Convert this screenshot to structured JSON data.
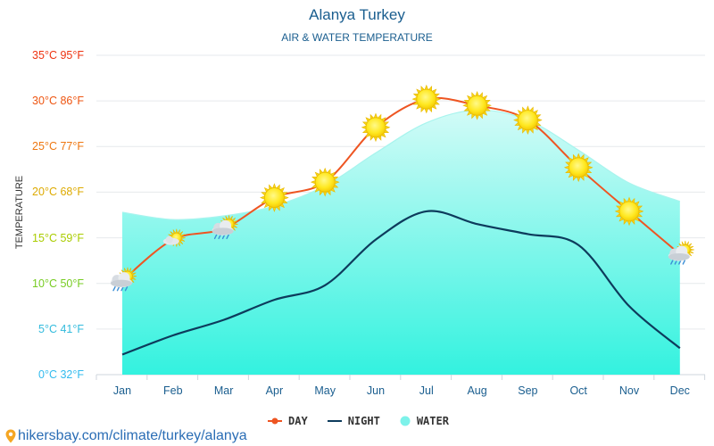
{
  "title": "Alanya Turkey",
  "subtitle": "AIR & WATER TEMPERATURE",
  "source": "hikersbay.com/climate/turkey/alanya",
  "chart_data": {
    "type": "line",
    "title": "Alanya Turkey",
    "subtitle": "AIR & WATER TEMPERATURE",
    "ylabel": "TEMPERATURE",
    "xlabel": "",
    "ylim": [
      0,
      35
    ],
    "grid": true,
    "legend_position": "bottom",
    "categories": [
      "Jan",
      "Feb",
      "Mar",
      "Apr",
      "May",
      "Jun",
      "Jul",
      "Aug",
      "Sep",
      "Oct",
      "Nov",
      "Dec"
    ],
    "y_ticks": [
      {
        "value": 0,
        "label": "0°C 32°F",
        "color": "#33bbee"
      },
      {
        "value": 5,
        "label": "5°C 41°F",
        "color": "#33bbdd"
      },
      {
        "value": 10,
        "label": "10°C 50°F",
        "color": "#77cc22"
      },
      {
        "value": 15,
        "label": "15°C 59°F",
        "color": "#aacc00"
      },
      {
        "value": 20,
        "label": "20°C 68°F",
        "color": "#ddaa00"
      },
      {
        "value": 25,
        "label": "25°C 77°F",
        "color": "#ee7711"
      },
      {
        "value": 30,
        "label": "30°C 86°F",
        "color": "#ee5511"
      },
      {
        "value": 35,
        "label": "35°C 95°F",
        "color": "#ee3311"
      }
    ],
    "series": [
      {
        "name": "DAY",
        "color": "#ee5522",
        "values": [
          10.3,
          14.8,
          16.0,
          19.4,
          21.1,
          27.1,
          30.2,
          29.5,
          27.9,
          22.7,
          17.9,
          13.2
        ]
      },
      {
        "name": "NIGHT",
        "color": "#0d3b5c",
        "values": [
          2.2,
          4.3,
          6.0,
          8.2,
          9.8,
          14.8,
          17.9,
          16.5,
          15.4,
          14.2,
          7.5,
          2.9
        ]
      },
      {
        "name": "WATER",
        "color": "#7df2ea",
        "values": [
          17.8,
          17.0,
          17.4,
          18.5,
          20.7,
          24.3,
          27.6,
          29.0,
          27.9,
          24.6,
          21.0,
          19.0
        ]
      }
    ],
    "weather_icons": [
      "cloud-sun-rain",
      "sun-cloud",
      "cloud-sun-rain",
      "sun",
      "sun",
      "sun",
      "sun",
      "sun",
      "sun",
      "sun",
      "sun",
      "cloud-sun-rain"
    ]
  }
}
